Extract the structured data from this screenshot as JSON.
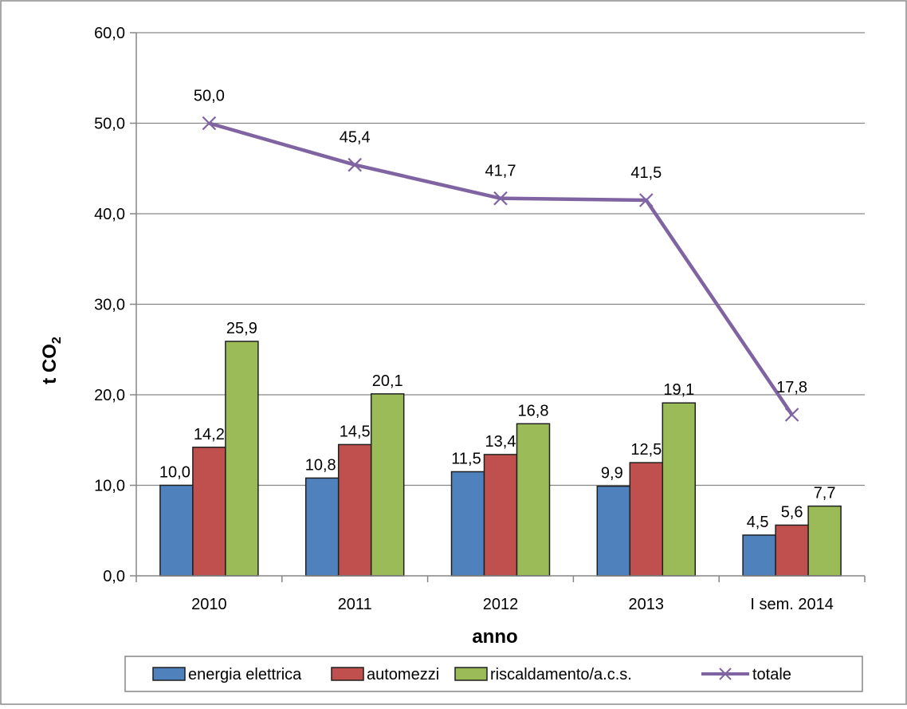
{
  "chart_data": {
    "type": "bar",
    "categories": [
      "2010",
      "2011",
      "2012",
      "2013",
      "I sem. 2014"
    ],
    "series": [
      {
        "name": "energia elettrica",
        "type": "bar",
        "color": "#4F81BD",
        "values": [
          10.0,
          10.8,
          11.5,
          9.9,
          4.5
        ],
        "labels": [
          "10,0",
          "10,8",
          "11,5",
          "9,9",
          "4,5"
        ]
      },
      {
        "name": "automezzi",
        "type": "bar",
        "color": "#C0504D",
        "values": [
          14.2,
          14.5,
          13.4,
          12.5,
          5.6
        ],
        "labels": [
          "14,2",
          "14,5",
          "13,4",
          "12,5",
          "5,6"
        ]
      },
      {
        "name": "riscaldamento/a.c.s.",
        "type": "bar",
        "color": "#9BBB59",
        "values": [
          25.9,
          20.1,
          16.8,
          19.1,
          7.7
        ],
        "labels": [
          "25,9",
          "20,1",
          "16,8",
          "19,1",
          "7,7"
        ]
      },
      {
        "name": "totale",
        "type": "line",
        "color": "#8064A2",
        "marker": "x",
        "values": [
          50.0,
          45.4,
          41.7,
          41.5,
          17.8
        ],
        "labels": [
          "50,0",
          "45,4",
          "41,7",
          "41,5",
          "17,8"
        ]
      }
    ],
    "xlabel": "anno",
    "ylabel": {
      "main": "t CO",
      "sub": "2"
    },
    "ylim": [
      0,
      60
    ],
    "yticks": [
      0,
      10,
      20,
      30,
      40,
      50,
      60
    ],
    "ytick_labels": [
      "0,0",
      "10,0",
      "20,0",
      "30,0",
      "40,0",
      "50,0",
      "60,0"
    ],
    "grid": true,
    "legend_position": "bottom"
  }
}
